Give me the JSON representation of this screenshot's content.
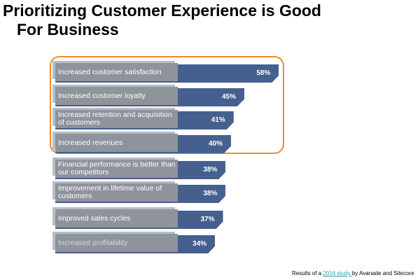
{
  "title_line1": "Prioritizing Customer Experience is Good",
  "title_line2": "For Business",
  "chart_data": {
    "type": "bar",
    "orientation": "horizontal",
    "categories": [
      "Increased customer satisfaction",
      "Increased customer loyalty",
      "Increased retention and acquisition of customers",
      "Increased revenues",
      "Financial performance is better than our competitors",
      "Improvement in lifetime value of customers",
      "Improved sales cycles",
      "Increased profitability"
    ],
    "values": [
      58,
      45,
      41,
      40,
      38,
      38,
      37,
      34
    ],
    "value_labels": [
      "58%",
      "45%",
      "41%",
      "40%",
      "38%",
      "38%",
      "37%",
      "34%"
    ],
    "highlighted": [
      0,
      1,
      2,
      3
    ],
    "colors": {
      "bar": "#45608f",
      "label": "#8e939c",
      "highlight": "#f08a2c"
    }
  },
  "footer": {
    "prefix": "Results of a ",
    "link": "2016 study ",
    "suffix": "by Avanade and Sitecore"
  }
}
